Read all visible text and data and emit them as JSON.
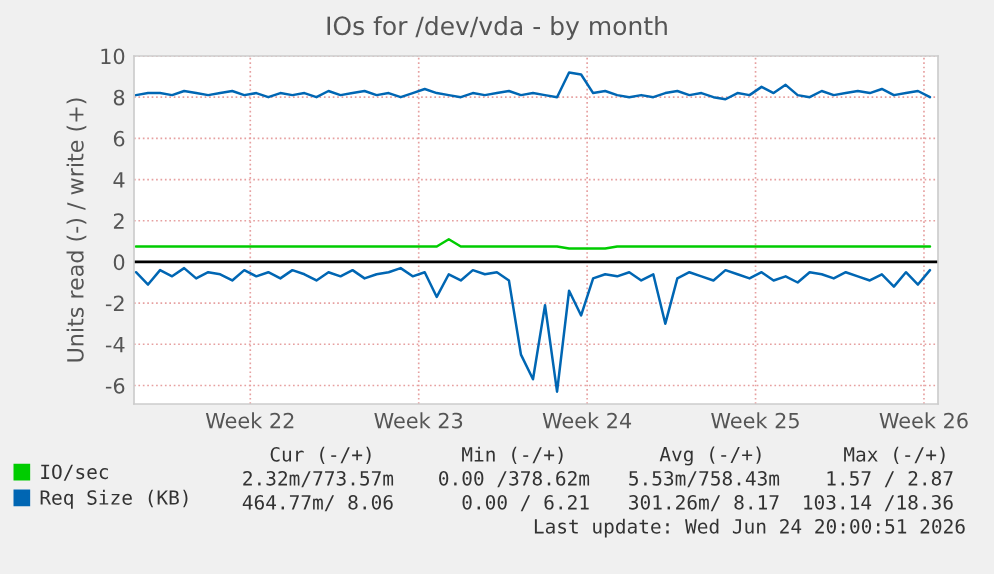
{
  "chart_data": {
    "type": "line",
    "title": "IOs for /dev/vda - by month",
    "ylabel": "Units read (-) / write (+)",
    "x": [
      "2026-05-23T18:00",
      "2026-05-24T06:00",
      "2026-05-24T18:00",
      "2026-05-25T06:00",
      "2026-05-25T18:00",
      "2026-05-26T06:00",
      "2026-05-26T18:00",
      "2026-05-27T06:00",
      "2026-05-27T18:00",
      "2026-05-28T06:00",
      "2026-05-28T18:00",
      "2026-05-29T06:00",
      "2026-05-29T18:00",
      "2026-05-30T06:00",
      "2026-05-30T18:00",
      "2026-05-31T06:00",
      "2026-05-31T18:00",
      "2026-06-01T06:00",
      "2026-06-01T18:00",
      "2026-06-02T06:00",
      "2026-06-02T18:00",
      "2026-06-03T06:00",
      "2026-06-03T18:00",
      "2026-06-04T06:00",
      "2026-06-04T18:00",
      "2026-06-05T06:00",
      "2026-06-05T18:00",
      "2026-06-06T06:00",
      "2026-06-06T18:00",
      "2026-06-07T06:00",
      "2026-06-07T18:00",
      "2026-06-08T06:00",
      "2026-06-08T18:00",
      "2026-06-09T06:00",
      "2026-06-09T18:00",
      "2026-06-10T06:00",
      "2026-06-10T18:00",
      "2026-06-11T06:00",
      "2026-06-11T18:00",
      "2026-06-12T06:00",
      "2026-06-12T18:00",
      "2026-06-13T06:00",
      "2026-06-13T18:00",
      "2026-06-14T06:00",
      "2026-06-14T18:00",
      "2026-06-15T06:00",
      "2026-06-15T18:00",
      "2026-06-16T06:00",
      "2026-06-16T18:00",
      "2026-06-17T06:00",
      "2026-06-17T18:00",
      "2026-06-18T06:00",
      "2026-06-18T18:00",
      "2026-06-19T06:00",
      "2026-06-19T18:00",
      "2026-06-20T06:00",
      "2026-06-20T18:00",
      "2026-06-21T06:00",
      "2026-06-21T18:00",
      "2026-06-22T06:00",
      "2026-06-22T18:00",
      "2026-06-23T06:00",
      "2026-06-23T18:00",
      "2026-06-24T06:00",
      "2026-06-24T18:00",
      "2026-06-25T06:00",
      "2026-06-25T18:00"
    ],
    "series": [
      {
        "name": "IO/sec",
        "color": "#00cc00",
        "values": [
          0.75,
          0.75,
          0.75,
          0.75,
          0.75,
          0.75,
          0.75,
          0.75,
          0.75,
          0.75,
          0.75,
          0.75,
          0.75,
          0.75,
          0.75,
          0.75,
          0.75,
          0.75,
          0.75,
          0.75,
          0.75,
          0.75,
          0.75,
          0.75,
          0.75,
          0.75,
          1.1,
          0.75,
          0.75,
          0.75,
          0.75,
          0.75,
          0.75,
          0.75,
          0.75,
          0.75,
          0.65,
          0.65,
          0.65,
          0.65,
          0.75,
          0.75,
          0.75,
          0.75,
          0.75,
          0.75,
          0.75,
          0.75,
          0.75,
          0.75,
          0.75,
          0.75,
          0.75,
          0.75,
          0.75,
          0.75,
          0.75,
          0.75,
          0.75,
          0.75,
          0.75,
          0.75,
          0.75,
          0.75,
          0.75,
          0.75,
          0.75
        ]
      },
      {
        "name": "Req Size (KB)",
        "color": "#0066b3",
        "values": [
          8.1,
          8.2,
          8.2,
          8.1,
          8.3,
          8.2,
          8.1,
          8.2,
          8.3,
          8.1,
          8.2,
          8.0,
          8.2,
          8.1,
          8.2,
          8.0,
          8.3,
          8.1,
          8.2,
          8.3,
          8.1,
          8.2,
          8.0,
          8.2,
          8.4,
          8.2,
          8.1,
          8.0,
          8.2,
          8.1,
          8.2,
          8.3,
          8.1,
          8.2,
          8.1,
          8.0,
          9.2,
          9.1,
          8.2,
          8.3,
          8.1,
          8.0,
          8.1,
          8.0,
          8.2,
          8.3,
          8.1,
          8.2,
          8.0,
          7.9,
          8.2,
          8.1,
          8.5,
          8.2,
          8.6,
          8.1,
          8.0,
          8.3,
          8.1,
          8.2,
          8.3,
          8.2,
          8.4,
          8.1,
          8.2,
          8.3,
          8.0
        ]
      },
      {
        "color": "#0066b3",
        "values": [
          -0.5,
          -1.1,
          -0.4,
          -0.7,
          -0.3,
          -0.8,
          -0.5,
          -0.6,
          -0.9,
          -0.4,
          -0.7,
          -0.5,
          -0.8,
          -0.4,
          -0.6,
          -0.9,
          -0.5,
          -0.7,
          -0.4,
          -0.8,
          -0.6,
          -0.5,
          -0.3,
          -0.7,
          -0.5,
          -1.7,
          -0.6,
          -0.9,
          -0.4,
          -0.6,
          -0.5,
          -0.9,
          -4.5,
          -5.7,
          -2.1,
          -6.3,
          -1.4,
          -2.6,
          -0.8,
          -0.6,
          -0.7,
          -0.5,
          -0.9,
          -0.6,
          -3.0,
          -0.8,
          -0.5,
          -0.7,
          -0.9,
          -0.4,
          -0.6,
          -0.8,
          -0.5,
          -0.9,
          -0.7,
          -1.0,
          -0.5,
          -0.6,
          -0.8,
          -0.5,
          -0.7,
          -0.9,
          -0.6,
          -1.2,
          -0.5,
          -1.1,
          -0.4
        ]
      }
    ],
    "xlim": [
      "2026-05-23T16:00",
      "2026-06-26T02:00"
    ],
    "xticks": [
      {
        "value": "2026-05-28T12:00",
        "label": "Week 22"
      },
      {
        "value": "2026-06-04T12:00",
        "label": "Week 23"
      },
      {
        "value": "2026-06-11T12:00",
        "label": "Week 24"
      },
      {
        "value": "2026-06-18T12:00",
        "label": "Week 25"
      },
      {
        "value": "2026-06-25T12:00",
        "label": "Week 26"
      }
    ],
    "ylim": [
      -6.9,
      10
    ],
    "yticks": [
      -6,
      -4,
      -2,
      0,
      2,
      4,
      6,
      8,
      10
    ],
    "ref_lines": [
      {
        "axis": "y",
        "value": 0,
        "color": "#000000"
      }
    ],
    "grid": true,
    "legend": "bottom left",
    "marker": "none",
    "line_style": "solid",
    "annotations": [
      "Cur (-/+)",
      "Min (-/+)",
      "Avg (-/+)",
      "Max (-/+)",
      "2.32m/773.57m",
      "0.00 /378.62m",
      "5.53m/758.43m",
      "1.57 / 2.87",
      "464.77m/ 8.06",
      "0.00 / 6.21",
      "301.26m/ 8.17",
      "103.14 /18.36",
      "Last update: Wed Jun 24 20:00:51 2026"
    ]
  }
}
